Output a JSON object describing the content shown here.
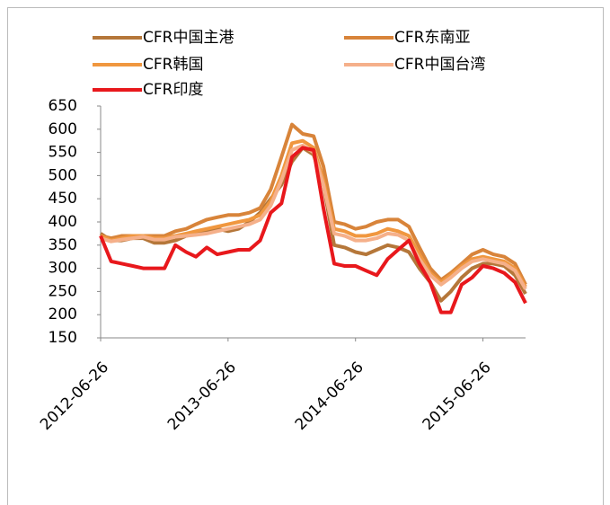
{
  "chart_data": {
    "type": "line",
    "x": [
      "2012-06-26",
      "2012-07-26",
      "2012-08-26",
      "2012-09-26",
      "2012-10-26",
      "2012-11-26",
      "2012-12-26",
      "2013-01-26",
      "2013-02-26",
      "2013-03-26",
      "2013-04-26",
      "2013-05-26",
      "2013-06-26",
      "2013-07-26",
      "2013-08-26",
      "2013-09-26",
      "2013-10-26",
      "2013-11-26",
      "2013-12-26",
      "2014-01-26",
      "2014-02-26",
      "2014-03-26",
      "2014-04-26",
      "2014-05-26",
      "2014-06-26",
      "2014-07-26",
      "2014-08-26",
      "2014-09-26",
      "2014-10-26",
      "2014-11-26",
      "2014-12-26",
      "2015-01-26",
      "2015-02-26",
      "2015-03-26",
      "2015-04-26",
      "2015-05-26",
      "2015-06-26",
      "2015-07-26",
      "2015-08-26",
      "2015-09-26",
      "2015-10-26"
    ],
    "series": [
      {
        "name": "CFR中国主港",
        "color": "#b5773a",
        "values": [
          375,
          360,
          360,
          365,
          365,
          355,
          355,
          360,
          370,
          375,
          380,
          385,
          380,
          385,
          400,
          420,
          450,
          480,
          530,
          560,
          545,
          480,
          350,
          345,
          335,
          330,
          340,
          350,
          345,
          335,
          300,
          270,
          230,
          250,
          280,
          300,
          310,
          310,
          305,
          285,
          245
        ]
      },
      {
        "name": "CFR东南亚",
        "color": "#d8843a",
        "values": [
          370,
          365,
          370,
          370,
          370,
          370,
          370,
          380,
          385,
          395,
          405,
          410,
          415,
          415,
          420,
          430,
          470,
          540,
          610,
          590,
          585,
          520,
          400,
          395,
          385,
          390,
          400,
          405,
          405,
          390,
          345,
          300,
          275,
          290,
          310,
          330,
          340,
          330,
          325,
          310,
          265
        ]
      },
      {
        "name": "CFR韩国",
        "color": "#f0973f",
        "values": [
          370,
          360,
          365,
          370,
          370,
          365,
          365,
          370,
          375,
          380,
          385,
          390,
          395,
          400,
          405,
          415,
          445,
          500,
          570,
          575,
          560,
          490,
          385,
          380,
          370,
          370,
          375,
          385,
          380,
          370,
          330,
          290,
          270,
          285,
          305,
          320,
          325,
          320,
          315,
          300,
          260
        ]
      },
      {
        "name": "CFR中国台湾",
        "color": "#f5b08a",
        "values": [
          365,
          358,
          362,
          365,
          368,
          362,
          362,
          368,
          370,
          372,
          375,
          380,
          385,
          390,
          395,
          405,
          435,
          490,
          555,
          565,
          550,
          480,
          375,
          370,
          360,
          360,
          365,
          375,
          372,
          360,
          320,
          285,
          265,
          280,
          300,
          315,
          320,
          315,
          310,
          295,
          255
        ]
      },
      {
        "name": "CFR印度",
        "color": "#e8181c",
        "values": [
          370,
          315,
          310,
          305,
          300,
          300,
          300,
          350,
          335,
          325,
          345,
          330,
          335,
          340,
          340,
          360,
          420,
          440,
          540,
          560,
          555,
          430,
          310,
          305,
          305,
          295,
          285,
          320,
          340,
          360,
          310,
          270,
          205,
          205,
          265,
          280,
          305,
          300,
          290,
          270,
          225
        ]
      }
    ],
    "xlim": [
      "2012-06-26",
      "2015-10-26"
    ],
    "xticks": [
      "2012-06-26",
      "2013-06-26",
      "2014-06-26",
      "2015-06-26"
    ],
    "ylim": [
      150,
      650
    ],
    "yticks": [
      150,
      200,
      250,
      300,
      350,
      400,
      450,
      500,
      550,
      600,
      650
    ]
  }
}
